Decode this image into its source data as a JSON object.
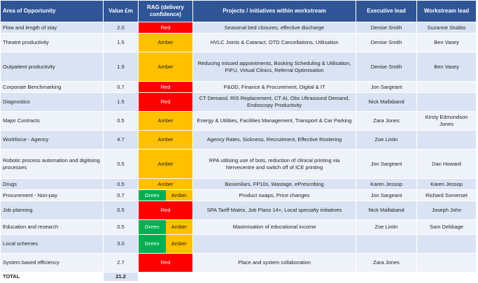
{
  "headers": {
    "area": "Area of Opportunity",
    "value": "Value £m",
    "rag": "RAG (delivery confidence)",
    "projects": "Projects / initiatives within workstream",
    "exec": "Executive lead",
    "workstream": "Workstream lead"
  },
  "colors": {
    "header": "#2f5597",
    "red": "#ff0000",
    "amber": "#ffc000",
    "green": "#00b050"
  },
  "rows": [
    {
      "area": "Flow and length of stay",
      "value": "2.0",
      "rag": [
        "Red"
      ],
      "projects": "Seasonal bed closures, effective discharge",
      "exec": "Denise Smith",
      "workstream": "Suzanne Stubbs",
      "h": 15
    },
    {
      "area": "Theatre productivity",
      "value": "1.5",
      "rag": [
        "Amber"
      ],
      "projects": "HVLC Joints & Cataract, OTD Cancellations, Utilisation",
      "exec": "Denise Smith",
      "workstream": "Ben Vasey",
      "h": 26
    },
    {
      "area": "Outpatient productivity",
      "value": "1.9",
      "rag": [
        "Amber"
      ],
      "projects": "Reducing missed appointments, Booking Scheduling & Utilisation, PIFU, Virtual Clinics, Referral Optimisation",
      "exec": "Denise Smith",
      "workstream": "Ben Vasey",
      "h": 41
    },
    {
      "area": "Corporate Benchmarking",
      "value": "0.7",
      "rag": [
        "Red"
      ],
      "projects": "P&OD, Finance & Procurement, Digital & IT",
      "exec": "Jon Sargeant",
      "workstream": "",
      "h": 15
    },
    {
      "area": "Diagnostics",
      "value": "1.5",
      "rag": [
        "Red"
      ],
      "projects": "CT Demand, RIS Replacement, CT AI, Obs Ultrasound Demand, Endoscopy Productivity",
      "exec": "Nick Mallaband",
      "workstream": "",
      "h": 26
    },
    {
      "area": "Major Contracts",
      "value": "0.5",
      "rag": [
        "Amber"
      ],
      "projects": "Energy & Utilities, Facilities Management, Transport & Car Parking",
      "exec": "Zara Jones",
      "workstream": "Kirsty Edmondson Jones",
      "h": 26
    },
    {
      "area": "Workforce - Agency",
      "value": "4.7",
      "rag": [
        "Amber"
      ],
      "projects": "Agency Rates, Sickness, Recruitment, Effective Rostering",
      "exec": "Zoe Lintin",
      "workstream": "",
      "h": 26
    },
    {
      "area": "Robotic process automation and digitising processes",
      "value": "0.5",
      "rag": [
        "Amber"
      ],
      "projects": "RPA utilising use of bots, reduction of clinical printing via Nervecentre and switch off of ICE printing",
      "exec": "Jon Sargeant",
      "workstream": "Dan Howard",
      "h": 41
    },
    {
      "area": "Drugs",
      "value": "0.5",
      "rag": [
        "Amber"
      ],
      "projects": "Biosimilars, FP10s, Wastage, ePrescribing",
      "exec": "Karen Jessop",
      "workstream": "Karen Jessop",
      "h": 15
    },
    {
      "area": "Procurement - Non-pay",
      "value": "0.7",
      "rag": [
        "Green",
        "Amber"
      ],
      "projects": "Product swaps, Price changes",
      "exec": "Jon Sargeant",
      "workstream": "Richard Somerset",
      "h": 15
    },
    {
      "area": "Job planning",
      "value": "0.5",
      "rag": [
        "Red"
      ],
      "projects": "SPA Tariff Matrix, Job Plans 14+, Local specialty initiatives",
      "exec": "Nick Mallaband",
      "workstream": "Joseph John",
      "h": 26
    },
    {
      "area": "Education and research",
      "value": "0.5",
      "rag": [
        "Green",
        "Amber"
      ],
      "projects": "Maximisation of educational income",
      "exec": "Zoe Lintin",
      "workstream": "Sam Debbage",
      "h": 20
    },
    {
      "area": "Local schemes",
      "value": "3.0",
      "rag": [
        "Green",
        "Amber"
      ],
      "projects": "",
      "exec": "",
      "workstream": "",
      "h": 26
    },
    {
      "area": "System based efficiency",
      "value": "2.7",
      "rag": [
        "Red"
      ],
      "projects": "Place and system collaboration",
      "exec": "Zara Jones",
      "workstream": "",
      "h": 26
    }
  ],
  "total": {
    "label": "TOTAL",
    "value": "21.2"
  }
}
